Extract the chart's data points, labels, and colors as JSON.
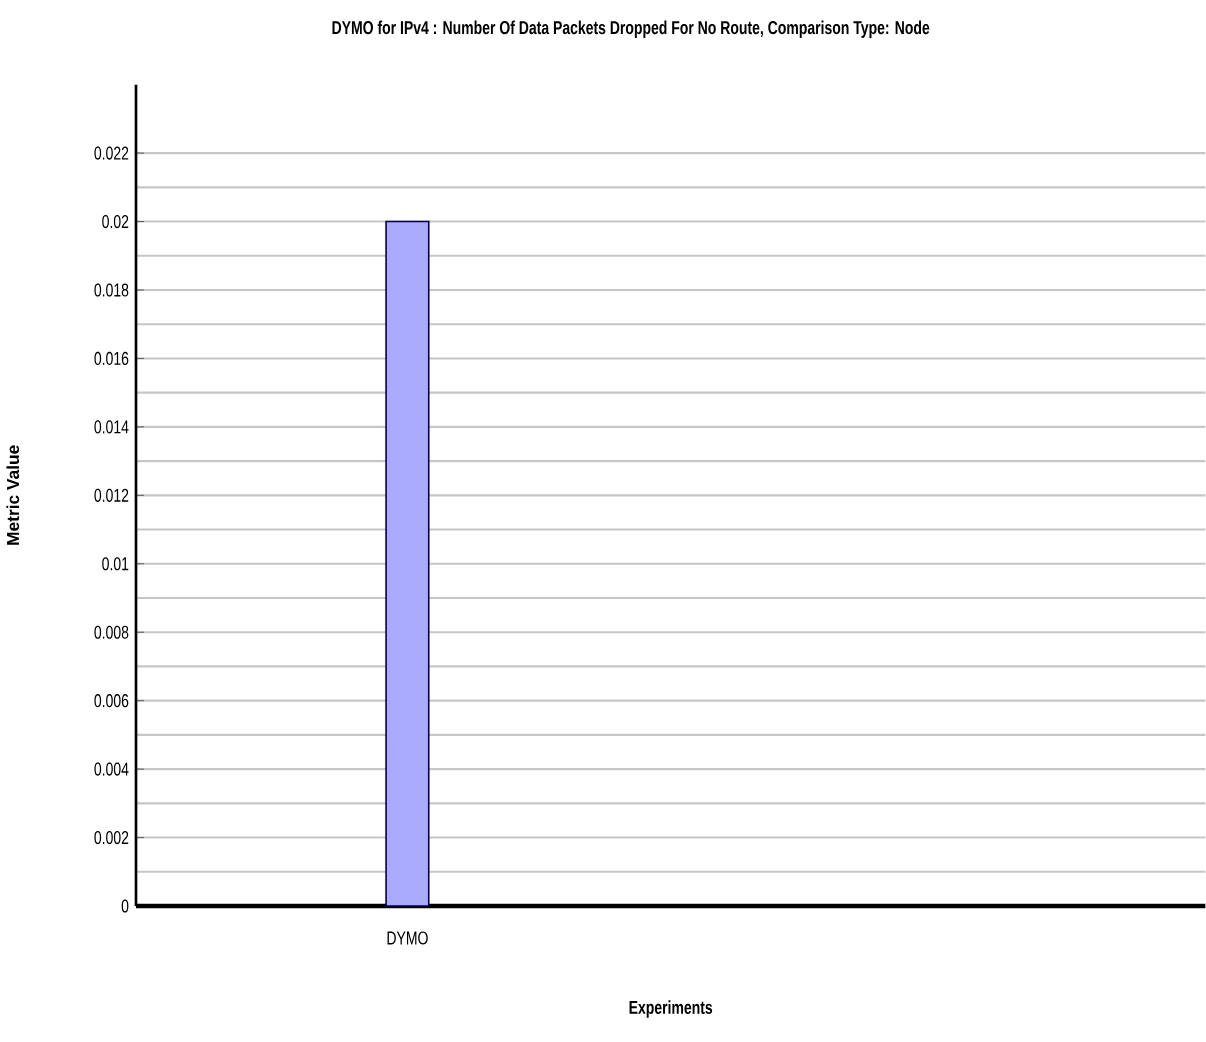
{
  "chart_data": {
    "type": "bar",
    "title": "DYMO for IPv4 :  Number Of Data Packets Dropped For No Route, Comparison Type: Node",
    "xlabel": "Experiments",
    "ylabel": "Metric Value",
    "categories": [
      "DYMO"
    ],
    "values": [
      0.02
    ],
    "color": "#aaaaff",
    "ylim": [
      0,
      0.024
    ],
    "yticks": [
      0,
      0.002,
      0.004,
      0.006,
      0.008,
      0.01,
      0.012,
      0.014,
      0.016,
      0.018,
      0.02,
      0.022
    ],
    "grid": "y"
  }
}
